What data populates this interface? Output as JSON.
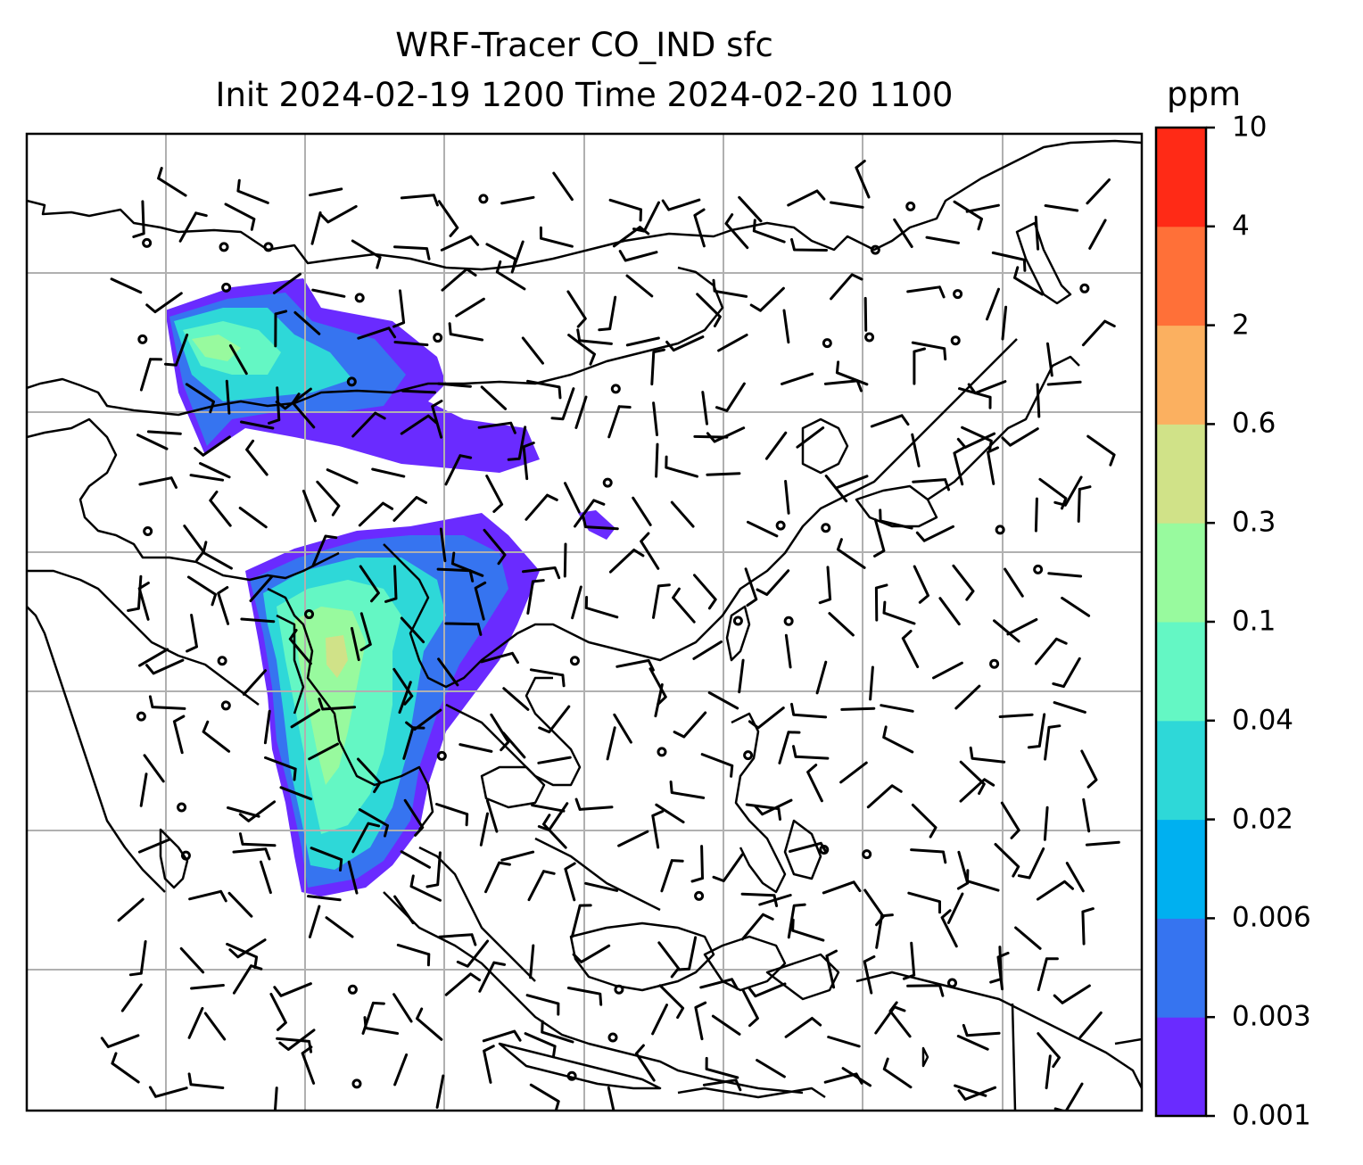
{
  "title": {
    "line1": "WRF-Tracer CO_IND sfc",
    "line2": "Init 2024-02-19 1200 Time 2024-02-20 1100"
  },
  "colorbar": {
    "unit": "ppm",
    "levels": [
      "0.001",
      "0.003",
      "0.006",
      "0.02",
      "0.04",
      "0.1",
      "0.3",
      "0.6",
      "2",
      "4",
      "10"
    ],
    "colors": [
      "#6a2bff",
      "#3674f0",
      "#00b0f0",
      "#2ed8d8",
      "#64f7c4",
      "#98fa9e",
      "#d0e288",
      "#fbb060",
      "#ff7038",
      "#ff2a16"
    ]
  },
  "map": {
    "grid_color": "#b0b0b0",
    "coast_color": "#000000",
    "plume_colors": {
      "low": "#6a2bff",
      "mid": "#3674f0",
      "cyan": "#2ed8d8",
      "green": "#64f7c4",
      "lightgreen": "#98fa9e"
    }
  }
}
